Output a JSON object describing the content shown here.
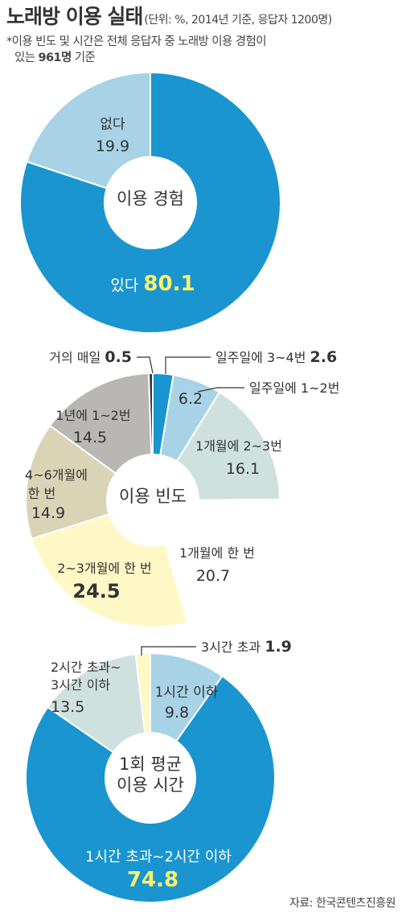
{
  "header": {
    "title": "노래방 이용 실태",
    "subtitle": "(단위: %, 2014년 기준, 응답자 1200명)",
    "note_line1": "*이용 빈도 및 시간은 전체 응답자 중 노래방 이용 경험이",
    "note_line2_pre": "있는 ",
    "note_line2_bold": "961명",
    "note_line2_post": " 기준"
  },
  "source": "자료: 한국콘텐츠진흥원",
  "chart_data": [
    {
      "type": "pie",
      "title": "이용 경험",
      "slices": [
        {
          "label": "있다",
          "value": 80.1,
          "color": "#1a95cf"
        },
        {
          "label": "없다",
          "value": 19.9,
          "color": "#a8d3e6"
        }
      ]
    },
    {
      "type": "pie",
      "title": "이용 빈도",
      "slices": [
        {
          "label": "일주일에 3~4번",
          "value": 2.6,
          "color": "#1a95cf"
        },
        {
          "label": "일주일에 1~2번",
          "value": 6.2,
          "color": "#a8d3e6"
        },
        {
          "label": "1개월에 2~3번",
          "value": 16.1,
          "color": "#cfe1df"
        },
        {
          "label": "1개월에 한 번",
          "value": 20.7,
          "color": "#ffffff"
        },
        {
          "label": "2~3개월에 한 번",
          "value": 24.5,
          "color": "#fef8c6"
        },
        {
          "label": "4~6개월에 한 번",
          "value": 14.9,
          "color": "#d9d4b6"
        },
        {
          "label": "1년에 1~2번",
          "value": 14.5,
          "color": "#b8b7b3"
        },
        {
          "label": "거의 매일",
          "value": 0.5,
          "color": "#333333"
        }
      ]
    },
    {
      "type": "pie",
      "title": "1회 평균 이용 시간",
      "slices": [
        {
          "label": "1시간 이하",
          "value": 9.8,
          "color": "#a8d3e6"
        },
        {
          "label": "1시간 초과~2시간 이하",
          "value": 74.8,
          "color": "#1a95cf"
        },
        {
          "label": "2시간 초과~3시간 이하",
          "value": 13.5,
          "color": "#cfe1df"
        },
        {
          "label": "3시간 초과",
          "value": 1.9,
          "color": "#fef8c6"
        }
      ]
    }
  ]
}
